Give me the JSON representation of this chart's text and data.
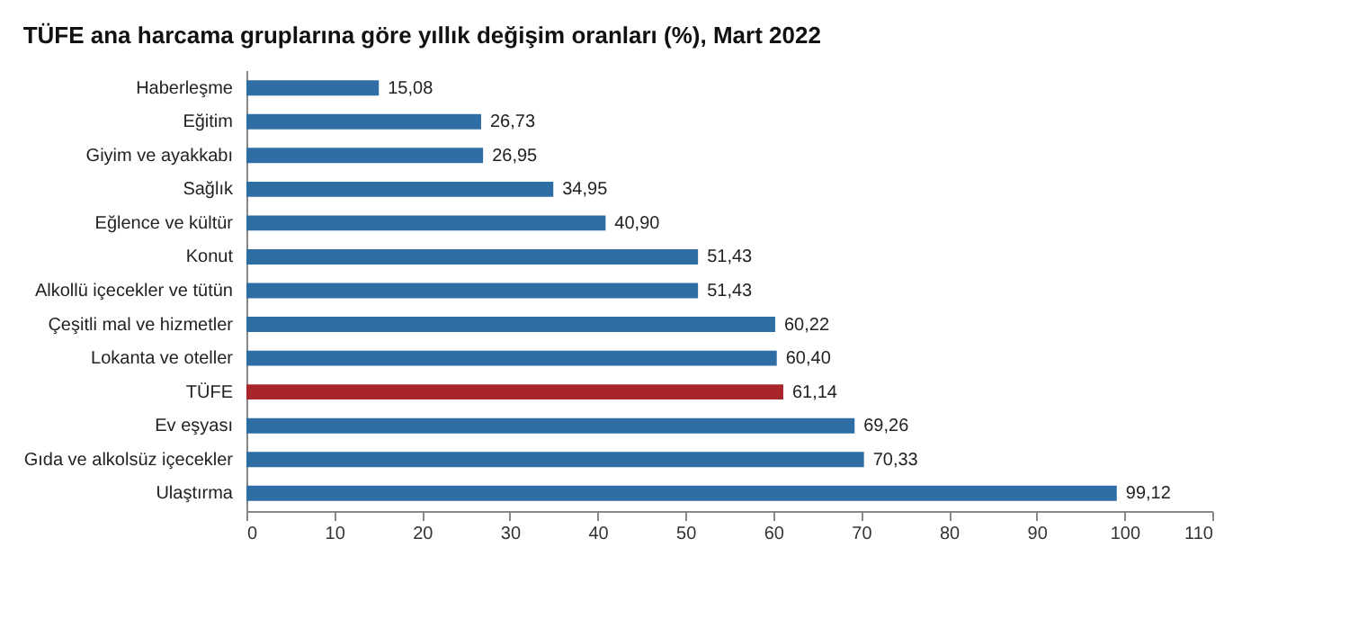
{
  "chart_data": {
    "type": "bar",
    "orientation": "horizontal",
    "title": "TÜFE ana harcama gruplarına göre yıllık değişim oranları (%), Mart 2022",
    "categories": [
      "Haberleşme",
      "Eğitim",
      "Giyim ve ayakkabı",
      "Sağlık",
      "Eğlence ve kültür",
      "Konut",
      "Alkollü içecekler ve tütün",
      "Çeşitli mal ve hizmetler",
      "Lokanta ve oteller",
      "TÜFE",
      "Ev eşyası",
      "Gıda ve alkolsüz içecekler",
      "Ulaştırma"
    ],
    "values": [
      15.08,
      26.73,
      26.95,
      34.95,
      40.9,
      51.43,
      51.43,
      60.22,
      60.4,
      61.14,
      69.26,
      70.33,
      99.12
    ],
    "value_labels": [
      "15,08",
      "26,73",
      "26,95",
      "34,95",
      "40,90",
      "51,43",
      "51,43",
      "60,22",
      "60,40",
      "61,14",
      "69,26",
      "70,33",
      "99,12"
    ],
    "colors": [
      "#2f6ea5",
      "#2f6ea5",
      "#2f6ea5",
      "#2f6ea5",
      "#2f6ea5",
      "#2f6ea5",
      "#2f6ea5",
      "#2f6ea5",
      "#2f6ea5",
      "#a8262b",
      "#2f6ea5",
      "#2f6ea5",
      "#2f6ea5"
    ],
    "xlim": [
      0,
      110
    ],
    "xticks": [
      0,
      10,
      20,
      30,
      40,
      50,
      60,
      70,
      80,
      90,
      100,
      110
    ],
    "grid": false
  }
}
